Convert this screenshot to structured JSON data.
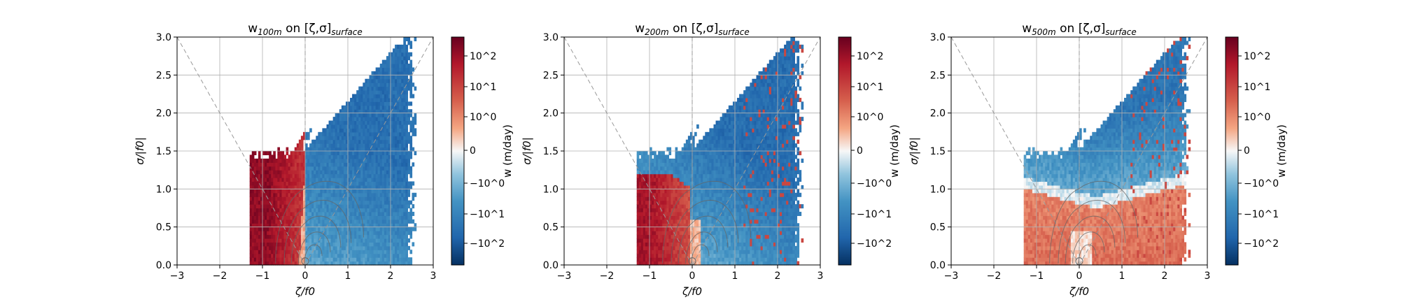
{
  "colorbar": {
    "label": "w (m/day)",
    "tick_labels": [
      "10^2",
      "10^1",
      "10^0",
      "0",
      "−10^0",
      "−10^1",
      "−10^2"
    ],
    "tick_values": [
      100,
      10,
      1,
      0,
      -1,
      -10,
      -100
    ],
    "scale": "symlog",
    "colormap": "RdBu_r",
    "colors": {
      "positive_max": "#67001f",
      "positive": "#d6604d",
      "zero": "#f7f7f7",
      "negative": "#4393c3",
      "negative_max": "#053061"
    }
  },
  "chart_data": [
    {
      "type": "heatmap",
      "title": "w100m on [ζ,σ]surface",
      "title_parts": {
        "base": "w",
        "sub": "100m",
        "mid": " on [ζ,σ]",
        "sub2": "surface"
      },
      "xlabel": "ζ/f0",
      "ylabel": "σ/|f0|",
      "xlim": [
        -3,
        3
      ],
      "ylim": [
        0,
        3
      ],
      "xticks": [
        -3,
        -2,
        -1,
        0,
        1,
        2,
        3
      ],
      "yticks": [
        0.0,
        0.5,
        1.0,
        1.5,
        2.0,
        2.5,
        3.0
      ],
      "grid": true,
      "positive_region": {
        "x": [
          -1.1,
          0.05
        ],
        "y": [
          0.0,
          1.5
        ],
        "description": "strong upwelling (red) on the cyclonic/left side"
      },
      "negative_region": {
        "x": [
          0.0,
          2.5
        ],
        "y": [
          0.0,
          3.0
        ],
        "description": "downwelling (blue) extending to high strain"
      },
      "reference_lines": [
        {
          "slope": -1,
          "intercept": 0
        },
        {
          "slope": 1,
          "intercept": 0
        },
        {
          "x": 0
        }
      ]
    },
    {
      "type": "heatmap",
      "title": "w200m on [ζ,σ]surface",
      "title_parts": {
        "base": "w",
        "sub": "200m",
        "mid": " on [ζ,σ]",
        "sub2": "surface"
      },
      "xlabel": "ζ/f0",
      "ylabel": "σ/|f0|",
      "xlim": [
        -3,
        3
      ],
      "ylim": [
        0,
        3
      ],
      "xticks": [
        -3,
        -2,
        -1,
        0,
        1,
        2,
        3
      ],
      "yticks": [
        0.0,
        0.5,
        1.0,
        1.5,
        2.0,
        2.5,
        3.0
      ],
      "grid": true,
      "positive_region": {
        "x": [
          -1.2,
          0.0
        ],
        "y": [
          0.0,
          1.2
        ],
        "description": "upwelling (red), weaker than 100m"
      },
      "negative_region": {
        "x": [
          -0.2,
          2.5
        ],
        "y": [
          0.0,
          3.0
        ],
        "description": "downwelling (blue)"
      },
      "reference_lines": [
        {
          "slope": -1,
          "intercept": 0
        },
        {
          "slope": 1,
          "intercept": 0
        },
        {
          "x": 0
        }
      ]
    },
    {
      "type": "heatmap",
      "title": "w500m on [ζ,σ]surface",
      "title_parts": {
        "base": "w",
        "sub": "500m",
        "mid": " on [ζ,σ]",
        "sub2": "surface"
      },
      "xlabel": "ζ/f0",
      "ylabel": "σ/|f0|",
      "xlim": [
        -3,
        3
      ],
      "ylim": [
        0,
        3
      ],
      "xticks": [
        -3,
        -2,
        -1,
        0,
        1,
        2,
        3
      ],
      "yticks": [
        0.0,
        0.5,
        1.0,
        1.5,
        2.0,
        2.5,
        3.0
      ],
      "grid": true,
      "positive_region": {
        "x": [
          -1.2,
          2.0
        ],
        "y": [
          0.0,
          0.75
        ],
        "description": "weak upwelling (light red) at low strain on both sides"
      },
      "negative_region": {
        "x": [
          -0.5,
          2.5
        ],
        "y": [
          0.75,
          3.0
        ],
        "description": "downwelling (blue)"
      },
      "reference_lines": [
        {
          "slope": -1,
          "intercept": 0
        },
        {
          "slope": 1,
          "intercept": 0
        },
        {
          "x": 0
        }
      ]
    }
  ]
}
